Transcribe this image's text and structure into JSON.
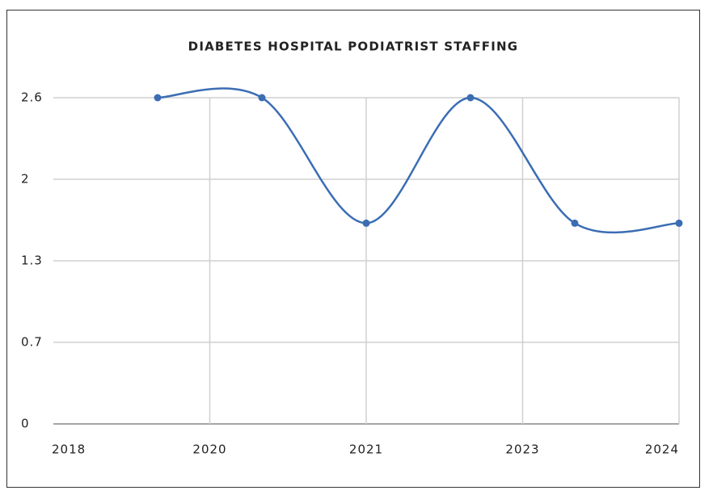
{
  "chart_data": {
    "type": "line",
    "title": "DIABETES HOSPITAL PODIATRIST STAFFING",
    "x": [
      2019,
      2020,
      2021,
      2022,
      2023,
      2024
    ],
    "values": [
      2.6,
      2.6,
      1.6,
      2.6,
      1.6,
      1.6
    ],
    "color": "#3b6db3",
    "smooth": true,
    "xlim": [
      2018,
      2024
    ],
    "xticks": [
      2018,
      {
        "value": 2019.5,
        "label": "2020"
      },
      2021,
      {
        "value": 2022.5,
        "label": "2023"
      },
      2024
    ],
    "ylim": [
      0,
      2.6
    ],
    "yticks": [
      0,
      {
        "value": 0.65,
        "label": "0.7"
      },
      1.3,
      {
        "value": 1.95,
        "label": "2"
      },
      2.6
    ],
    "grid": true
  }
}
